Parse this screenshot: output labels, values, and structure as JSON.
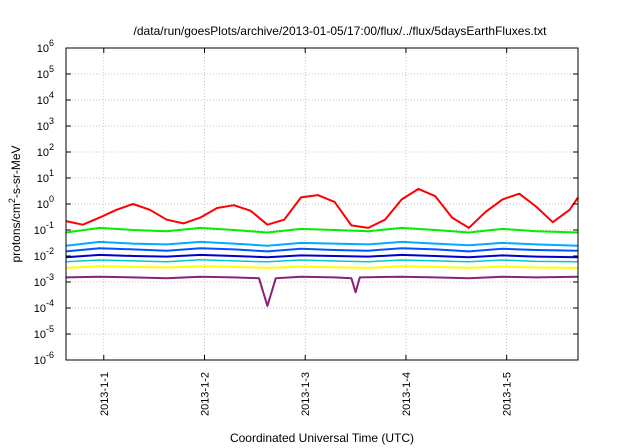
{
  "chart_data": {
    "type": "line",
    "title": "/data/run/goesPlots/archive/2013-01-05/17:00/flux/../flux/5daysEarthFluxes.txt",
    "xlabel": "Coordinated Universal Time (UTC)",
    "ylabel_parts": {
      "base": "protons/cm",
      "sup": "2",
      "rest": "-s-sr-MeV"
    },
    "yscale": "log",
    "ylim": [
      1e-06,
      1000000.0
    ],
    "y_ticks": [
      {
        "value": 1e-06,
        "base": "10",
        "exp": "-6"
      },
      {
        "value": 1e-05,
        "base": "10",
        "exp": "-5"
      },
      {
        "value": 0.0001,
        "base": "10",
        "exp": "-4"
      },
      {
        "value": 0.001,
        "base": "10",
        "exp": "-3"
      },
      {
        "value": 0.01,
        "base": "10",
        "exp": "-2"
      },
      {
        "value": 0.1,
        "base": "10",
        "exp": "-1"
      },
      {
        "value": 1,
        "base": "10",
        "exp": "0"
      },
      {
        "value": 10,
        "base": "10",
        "exp": "1"
      },
      {
        "value": 100,
        "base": "10",
        "exp": "2"
      },
      {
        "value": 1000,
        "base": "10",
        "exp": "3"
      },
      {
        "value": 10000,
        "base": "10",
        "exp": "4"
      },
      {
        "value": 100000,
        "base": "10",
        "exp": "5"
      },
      {
        "value": 1000000,
        "base": "10",
        "exp": "6"
      }
    ],
    "xlim": [
      "2012-12-31T15:00",
      "2013-01-05T17:00"
    ],
    "x_ticks": [
      {
        "value": "2013-01-01T00:00",
        "label": "2013-1-1"
      },
      {
        "value": "2013-01-02T00:00",
        "label": "2013-1-2"
      },
      {
        "value": "2013-01-03T00:00",
        "label": "2013-1-3"
      },
      {
        "value": "2013-01-04T00:00",
        "label": "2013-1-4"
      },
      {
        "value": "2013-01-05T00:00",
        "label": "2013-1-5"
      }
    ],
    "grid": true,
    "series": [
      {
        "color": "#ff0000",
        "stroke": 2,
        "x": [
          "2012-12-31T15:00",
          "2012-12-31T19:00",
          "2012-12-31T23:00",
          "2013-01-01T03:00",
          "2013-01-01T07:00",
          "2013-01-01T11:00",
          "2013-01-01T15:00",
          "2013-01-01T19:00",
          "2013-01-01T23:00",
          "2013-01-02T03:00",
          "2013-01-02T07:00",
          "2013-01-02T11:00",
          "2013-01-02T15:00",
          "2013-01-02T19:00",
          "2013-01-02T23:00",
          "2013-01-03T03:00",
          "2013-01-03T07:00",
          "2013-01-03T11:00",
          "2013-01-03T15:00",
          "2013-01-03T19:00",
          "2013-01-03T23:00",
          "2013-01-04T03:00",
          "2013-01-04T07:00",
          "2013-01-04T11:00",
          "2013-01-04T15:00",
          "2013-01-04T19:00",
          "2013-01-04T23:00",
          "2013-01-05T03:00",
          "2013-01-05T07:00",
          "2013-01-05T11:00",
          "2013-01-05T15:00",
          "2013-01-05T17:00"
        ],
        "y": [
          0.22,
          0.16,
          0.3,
          0.6,
          1.0,
          0.6,
          0.25,
          0.18,
          0.3,
          0.7,
          0.9,
          0.55,
          0.16,
          0.25,
          1.8,
          2.2,
          1.2,
          0.15,
          0.12,
          0.25,
          1.5,
          3.8,
          2.0,
          0.3,
          0.12,
          0.5,
          1.5,
          2.5,
          0.8,
          0.2,
          0.6,
          1.8
        ]
      },
      {
        "color": "#00ee00",
        "stroke": 2,
        "x": [
          "2012-12-31T15:00",
          "2012-12-31T23:00",
          "2013-01-01T07:00",
          "2013-01-01T15:00",
          "2013-01-01T23:00",
          "2013-01-02T07:00",
          "2013-01-02T15:00",
          "2013-01-02T23:00",
          "2013-01-03T07:00",
          "2013-01-03T15:00",
          "2013-01-03T23:00",
          "2013-01-04T07:00",
          "2013-01-04T15:00",
          "2013-01-04T23:00",
          "2013-01-05T07:00",
          "2013-01-05T17:00"
        ],
        "y": [
          0.08,
          0.12,
          0.1,
          0.09,
          0.12,
          0.1,
          0.08,
          0.11,
          0.1,
          0.09,
          0.12,
          0.1,
          0.08,
          0.11,
          0.09,
          0.08
        ]
      },
      {
        "color": "#00aaff",
        "stroke": 2,
        "x": [
          "2012-12-31T15:00",
          "2012-12-31T23:00",
          "2013-01-01T07:00",
          "2013-01-01T15:00",
          "2013-01-01T23:00",
          "2013-01-02T07:00",
          "2013-01-02T15:00",
          "2013-01-02T23:00",
          "2013-01-03T07:00",
          "2013-01-03T15:00",
          "2013-01-03T23:00",
          "2013-01-04T07:00",
          "2013-01-04T15:00",
          "2013-01-04T23:00",
          "2013-01-05T07:00",
          "2013-01-05T17:00"
        ],
        "y": [
          0.025,
          0.035,
          0.03,
          0.028,
          0.035,
          0.03,
          0.025,
          0.032,
          0.03,
          0.028,
          0.035,
          0.03,
          0.026,
          0.032,
          0.028,
          0.025
        ]
      },
      {
        "color": "#0055ff",
        "stroke": 2,
        "x": [
          "2012-12-31T15:00",
          "2012-12-31T23:00",
          "2013-01-01T07:00",
          "2013-01-01T15:00",
          "2013-01-01T23:00",
          "2013-01-02T07:00",
          "2013-01-02T15:00",
          "2013-01-02T23:00",
          "2013-01-03T07:00",
          "2013-01-03T15:00",
          "2013-01-03T23:00",
          "2013-01-04T07:00",
          "2013-01-04T15:00",
          "2013-01-04T23:00",
          "2013-01-05T07:00",
          "2013-01-05T17:00"
        ],
        "y": [
          0.015,
          0.02,
          0.018,
          0.016,
          0.02,
          0.018,
          0.015,
          0.019,
          0.017,
          0.016,
          0.02,
          0.018,
          0.015,
          0.019,
          0.017,
          0.016
        ]
      },
      {
        "color": "#0000cc",
        "stroke": 2,
        "x": [
          "2012-12-31T15:00",
          "2012-12-31T23:00",
          "2013-01-01T07:00",
          "2013-01-01T15:00",
          "2013-01-01T23:00",
          "2013-01-02T07:00",
          "2013-01-02T15:00",
          "2013-01-02T23:00",
          "2013-01-03T07:00",
          "2013-01-03T15:00",
          "2013-01-03T23:00",
          "2013-01-04T07:00",
          "2013-01-04T15:00",
          "2013-01-04T23:00",
          "2013-01-05T07:00",
          "2013-01-05T17:00"
        ],
        "y": [
          0.009,
          0.011,
          0.01,
          0.0095,
          0.011,
          0.01,
          0.009,
          0.0105,
          0.01,
          0.0095,
          0.011,
          0.01,
          0.009,
          0.0105,
          0.0095,
          0.009
        ]
      },
      {
        "color": "#00cccc",
        "stroke": 1.5,
        "x": [
          "2012-12-31T15:00",
          "2012-12-31T23:00",
          "2013-01-01T07:00",
          "2013-01-01T15:00",
          "2013-01-01T23:00",
          "2013-01-02T07:00",
          "2013-01-02T15:00",
          "2013-01-02T23:00",
          "2013-01-03T07:00",
          "2013-01-03T15:00",
          "2013-01-03T23:00",
          "2013-01-04T07:00",
          "2013-01-04T15:00",
          "2013-01-04T23:00",
          "2013-01-05T07:00",
          "2013-01-05T17:00"
        ],
        "y": [
          0.006,
          0.007,
          0.0065,
          0.006,
          0.0072,
          0.0065,
          0.006,
          0.007,
          0.0064,
          0.006,
          0.007,
          0.0065,
          0.006,
          0.007,
          0.0062,
          0.006
        ]
      },
      {
        "color": "#ffff00",
        "stroke": 2,
        "x": [
          "2012-12-31T15:00",
          "2012-12-31T23:00",
          "2013-01-01T07:00",
          "2013-01-01T15:00",
          "2013-01-01T23:00",
          "2013-01-02T07:00",
          "2013-01-02T15:00",
          "2013-01-02T23:00",
          "2013-01-03T07:00",
          "2013-01-03T15:00",
          "2013-01-03T23:00",
          "2013-01-04T07:00",
          "2013-01-04T15:00",
          "2013-01-04T23:00",
          "2013-01-05T07:00",
          "2013-01-05T17:00"
        ],
        "y": [
          0.0035,
          0.004,
          0.0038,
          0.0036,
          0.004,
          0.0038,
          0.0035,
          0.0039,
          0.0037,
          0.0035,
          0.004,
          0.0038,
          0.0035,
          0.0039,
          0.0036,
          0.0035
        ]
      },
      {
        "color": "#882277",
        "stroke": 2,
        "x": [
          "2012-12-31T15:00",
          "2012-12-31T23:00",
          "2013-01-01T07:00",
          "2013-01-01T15:00",
          "2013-01-01T23:00",
          "2013-01-02T07:00",
          "2013-01-02T13:00",
          "2013-01-02T15:00",
          "2013-01-02T17:00",
          "2013-01-02T23:00",
          "2013-01-03T07:00",
          "2013-01-03T11:00",
          "2013-01-03T12:00",
          "2013-01-03T13:00",
          "2013-01-03T23:00",
          "2013-01-04T07:00",
          "2013-01-04T15:00",
          "2013-01-04T23:00",
          "2013-01-05T07:00",
          "2013-01-05T17:00"
        ],
        "y": [
          0.0015,
          0.0016,
          0.0015,
          0.0014,
          0.0016,
          0.0015,
          0.0014,
          0.00012,
          0.0014,
          0.0016,
          0.0015,
          0.0014,
          0.0004,
          0.0015,
          0.0016,
          0.0015,
          0.0014,
          0.0016,
          0.0015,
          0.0016
        ]
      }
    ]
  }
}
